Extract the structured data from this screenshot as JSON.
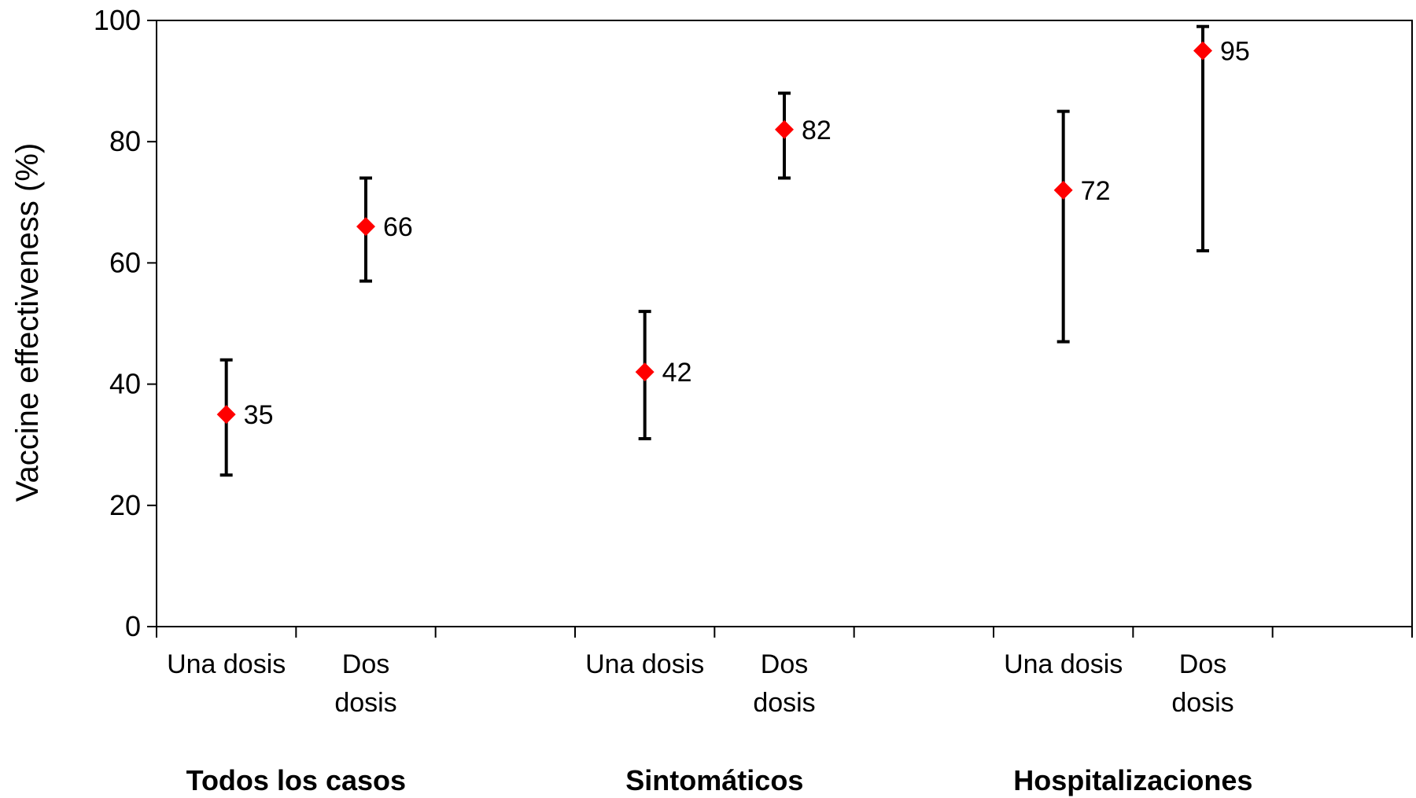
{
  "chart_data": {
    "type": "scatter",
    "ylabel": "Vaccine effectiveness (%)",
    "ylim": [
      0,
      100
    ],
    "yticks": [
      0,
      20,
      40,
      60,
      80,
      100
    ],
    "grid": false,
    "groups": [
      {
        "label": "Todos los casos",
        "points": [
          {
            "category": [
              "Una dosis"
            ],
            "value": 35,
            "ci_low": 25,
            "ci_high": 44,
            "label": "35"
          },
          {
            "category": [
              "Dos",
              "dosis"
            ],
            "value": 66,
            "ci_low": 57,
            "ci_high": 74,
            "label": "66"
          }
        ]
      },
      {
        "label": "Sintomáticos",
        "points": [
          {
            "category": [
              "Una dosis"
            ],
            "value": 42,
            "ci_low": 31,
            "ci_high": 52,
            "label": "42"
          },
          {
            "category": [
              "Dos",
              "dosis"
            ],
            "value": 82,
            "ci_low": 74,
            "ci_high": 88,
            "label": "82"
          }
        ]
      },
      {
        "label": "Hospitalizaciones",
        "points": [
          {
            "category": [
              "Una dosis"
            ],
            "value": 72,
            "ci_low": 47,
            "ci_high": 85,
            "label": "72"
          },
          {
            "category": [
              "Dos",
              "dosis"
            ],
            "value": 95,
            "ci_low": 62,
            "ci_high": 99,
            "label": "95"
          }
        ]
      }
    ],
    "marker_color": "#ff0000",
    "errorbar_color": "#000000"
  }
}
